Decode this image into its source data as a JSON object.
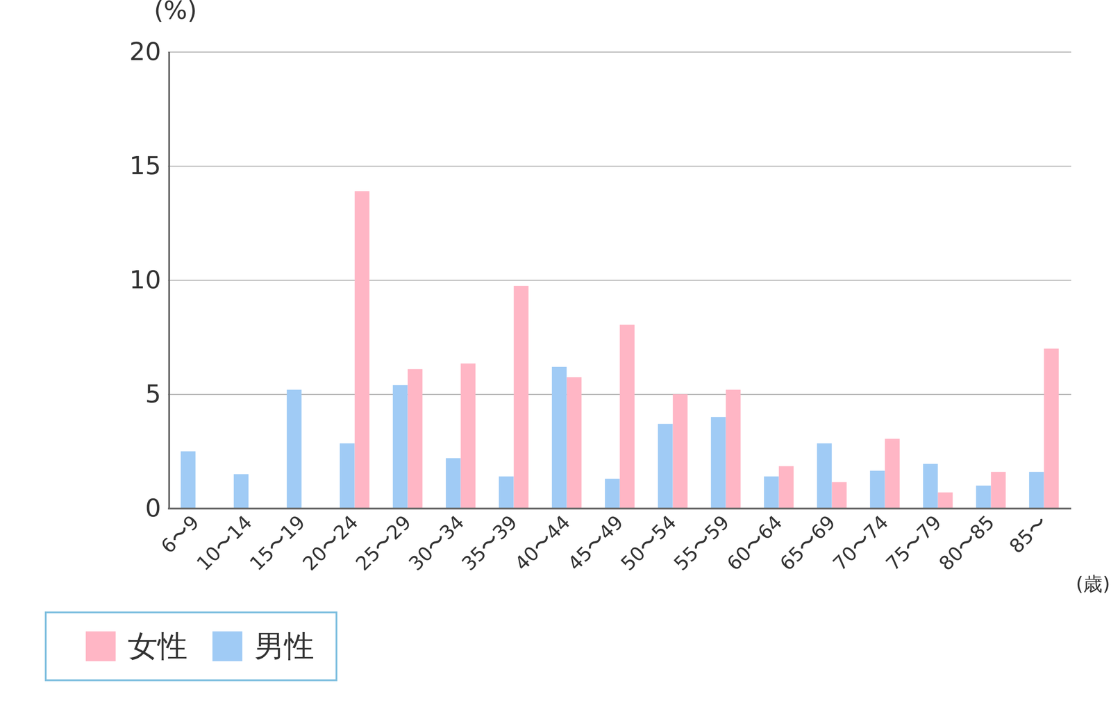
{
  "chart_data": {
    "type": "bar",
    "categories": [
      "6〜9",
      "10〜14",
      "15〜19",
      "20〜24",
      "25〜29",
      "30〜34",
      "35〜39",
      "40〜44",
      "45〜49",
      "50〜54",
      "55〜59",
      "60〜64",
      "65〜69",
      "70〜74",
      "75〜79",
      "80〜85",
      "85〜"
    ],
    "series": [
      {
        "name": "女性",
        "color": "#ffb6c5",
        "values": [
          0,
          0,
          0,
          13.9,
          6.1,
          6.35,
          9.75,
          5.75,
          8.05,
          5.0,
          5.2,
          1.85,
          1.15,
          3.05,
          0.7,
          1.6,
          7.0
        ]
      },
      {
        "name": "男性",
        "color": "#a0cbf5",
        "values": [
          2.5,
          1.5,
          5.2,
          2.85,
          5.4,
          2.2,
          1.4,
          6.2,
          1.3,
          3.7,
          4.0,
          1.4,
          2.85,
          1.65,
          1.95,
          1.0,
          1.6
        ]
      }
    ],
    "x_label": "(歳)",
    "y_label": "(%)",
    "ylim": [
      0,
      20
    ],
    "yticks": [
      0,
      5,
      10,
      15,
      20
    ],
    "grid": true,
    "legend": "bottom-left"
  }
}
